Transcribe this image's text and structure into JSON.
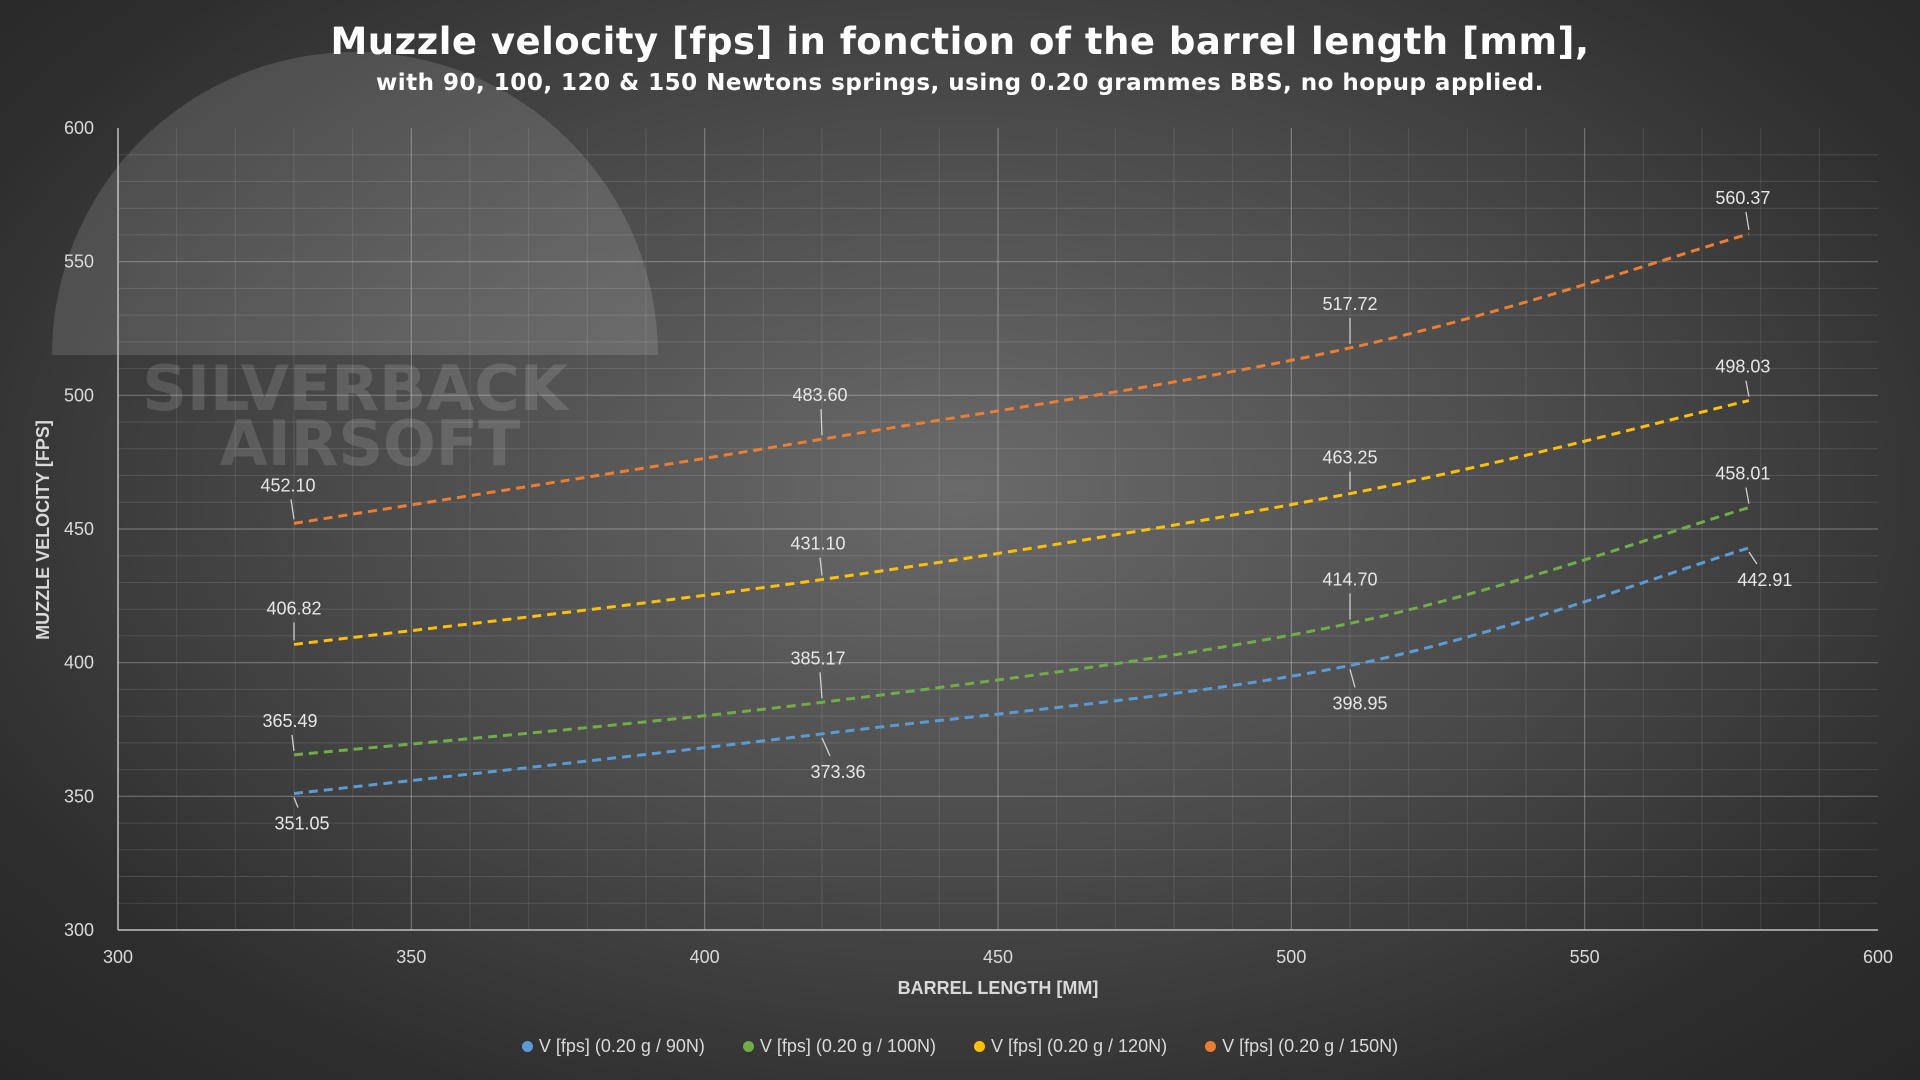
{
  "chart_data": {
    "type": "line",
    "title": "Muzzle velocity [fps] in fonction of the barrel length [mm],",
    "subtitle": "with 90, 100, 120 & 150 Newtons springs, using 0.20 grammes BBS, no hopup applied.",
    "xlabel": "BARREL LENGTH [MM]",
    "ylabel": "MUZZLE VELOCITY [FPS]",
    "xlim": [
      300,
      600
    ],
    "ylim": [
      300,
      600
    ],
    "x_ticks": [
      300,
      350,
      400,
      450,
      500,
      550,
      600
    ],
    "y_ticks": [
      300,
      350,
      400,
      450,
      500,
      550,
      600
    ],
    "grid": true,
    "legend_position": "bottom",
    "line_style": "dashed",
    "x": [
      330,
      420,
      510,
      578
    ],
    "series": [
      {
        "name": "V [fps] (0.20 g / 90N)",
        "color": "#5b9bd5",
        "values": [
          351.05,
          373.36,
          398.95,
          442.91
        ],
        "labels": [
          "351.05",
          "373.36",
          "398.95",
          "442.91"
        ]
      },
      {
        "name": "V [fps] (0.20 g / 100N)",
        "color": "#70ad47",
        "values": [
          365.49,
          385.17,
          414.7,
          458.01
        ],
        "labels": [
          "365.49",
          "385.17",
          "414.70",
          "458.01"
        ]
      },
      {
        "name": "V [fps] (0.20 g / 120N)",
        "color": "#ffc000",
        "values": [
          406.82,
          431.1,
          463.25,
          498.03
        ],
        "labels": [
          "406.82",
          "431.10",
          "463.25",
          "498.03"
        ]
      },
      {
        "name": "V [fps] (0.20 g / 150N)",
        "color": "#ed7d31",
        "values": [
          452.1,
          483.6,
          517.72,
          560.37
        ],
        "labels": [
          "452.10",
          "483.60",
          "517.72",
          "560.37"
        ]
      }
    ]
  },
  "watermark": {
    "line1": "SILVERBACK",
    "line2": "AIRSOFT"
  }
}
